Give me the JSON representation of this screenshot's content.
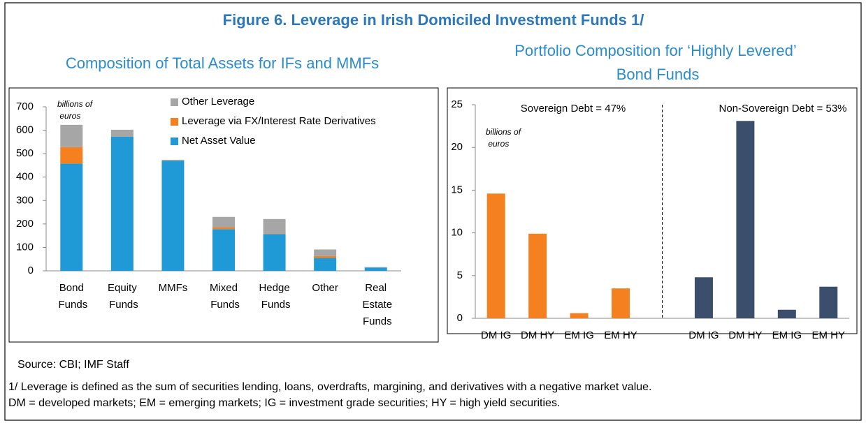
{
  "title": "Figure 6. Leverage in Irish Domiciled Investment Funds 1/",
  "chart_data": [
    {
      "type": "bar",
      "stacked": true,
      "title": "Composition of Total Assets for IFs and MMFs",
      "unit_label": "billions of euros",
      "categories": [
        "Bond Funds",
        "Equity Funds",
        "MMFs",
        "Mixed Funds",
        "Hedge Funds",
        "Other",
        "Real Estate Funds"
      ],
      "series": [
        {
          "name": "Net Asset Value",
          "color": "#1f9ad6",
          "values": [
            458,
            572,
            470,
            178,
            157,
            55,
            14
          ]
        },
        {
          "name": "Leverage via FX/Interest Rate Derivatives",
          "color": "#f4801f",
          "values": [
            70,
            0,
            0,
            8,
            2,
            8,
            0
          ]
        },
        {
          "name": "Other Leverage",
          "color": "#a6a6a6",
          "values": [
            95,
            30,
            4,
            44,
            62,
            28,
            2
          ]
        }
      ],
      "ylim": [
        0,
        700
      ],
      "yticks": [
        0,
        100,
        200,
        300,
        400,
        500,
        600,
        700
      ],
      "legend": "top"
    },
    {
      "type": "bar",
      "title": "Portfolio Composition for ‘Highly Levered’ Bond Funds",
      "unit_label": "billions of euros",
      "categories": [
        "DM IG",
        "DM HY",
        "EM IG",
        "EM HY",
        null,
        "DM IG",
        "DM HY",
        "EM IG",
        "EM HY"
      ],
      "values": [
        14.6,
        9.9,
        0.6,
        3.5,
        null,
        4.8,
        23.1,
        1.0,
        3.7
      ],
      "colors": [
        "#f4801f",
        "#f4801f",
        "#f4801f",
        "#f4801f",
        null,
        "#3b4e6b",
        "#3b4e6b",
        "#3b4e6b",
        "#3b4e6b"
      ],
      "ylim": [
        0,
        25
      ],
      "yticks": [
        0,
        5,
        10,
        15,
        20,
        25
      ],
      "annotations": [
        "Sovereign Debt = 47%",
        "Non-Sovereign Debt = 53%"
      ]
    }
  ],
  "source": "Source: CBI; IMF Staff",
  "notes": [
    "1/  Leverage is defined as the sum of securities lending, loans, overdrafts, margining, and derivatives with a negative market value.",
    "DM = developed markets; EM = emerging markets; IG = investment grade securities; HY = high yield securities."
  ]
}
